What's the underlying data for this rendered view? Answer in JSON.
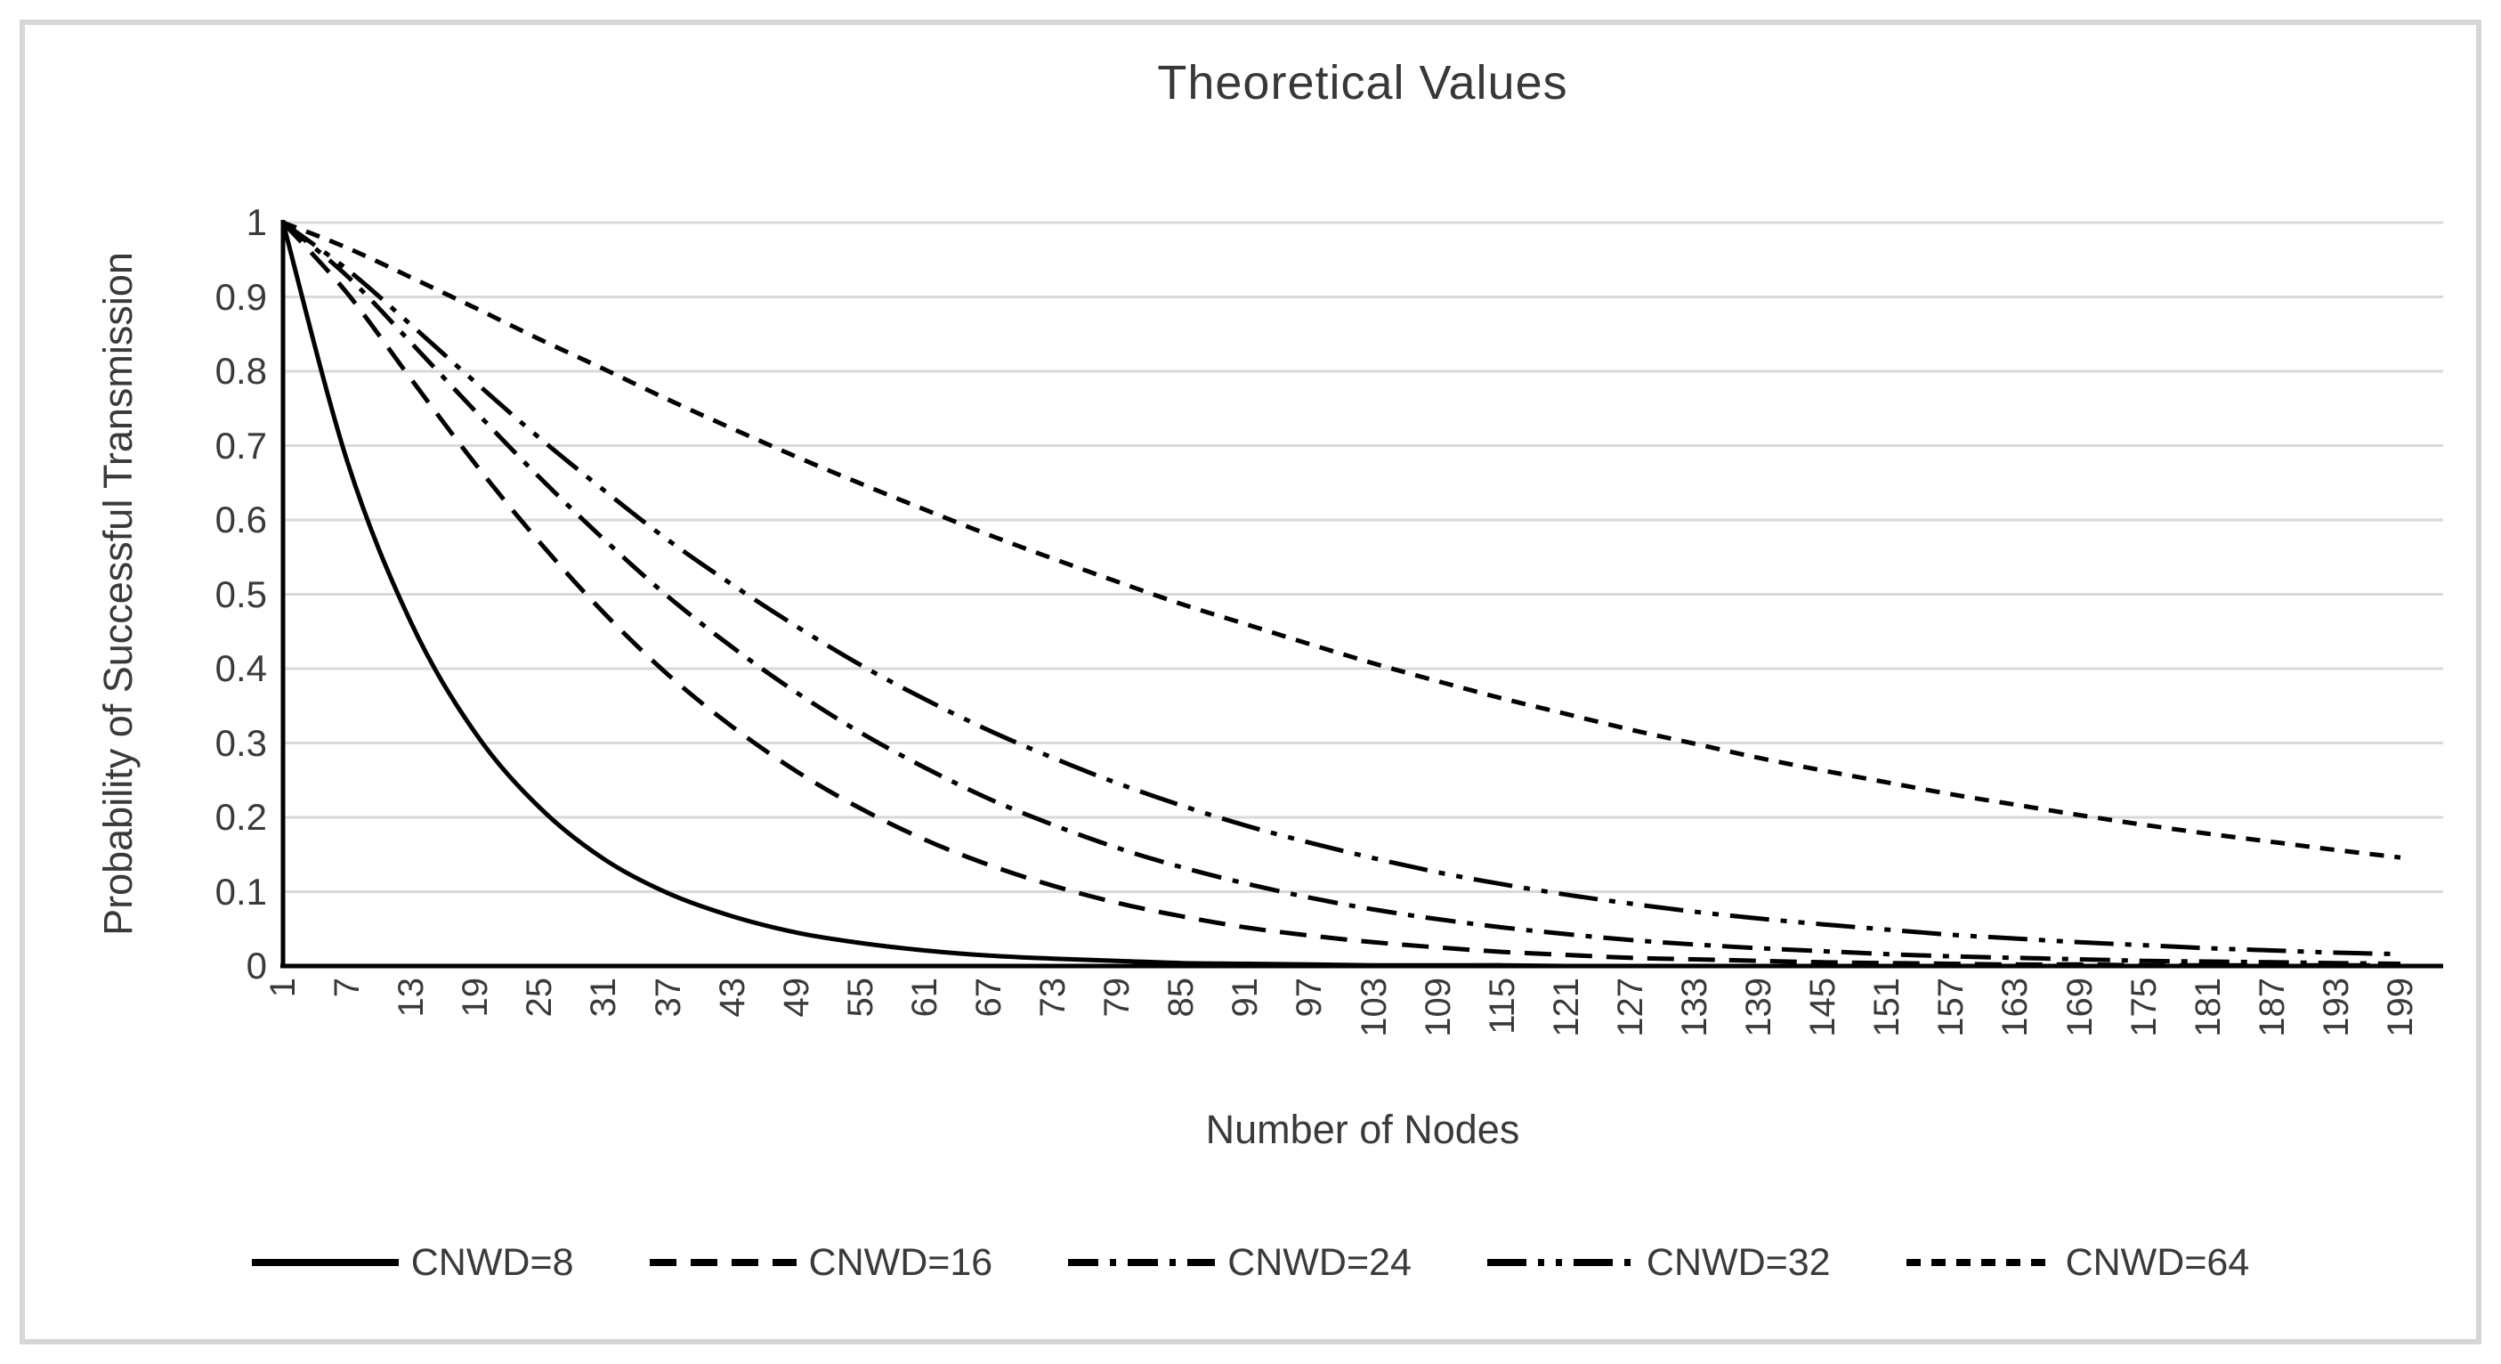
{
  "colors": {
    "series_line": "#000000",
    "gridline": "#d9d9d9",
    "axis_line": "#000000",
    "text": "#3a3a3a",
    "frame_border": "#d6d6d6",
    "background": "#ffffff"
  },
  "chart_data": {
    "type": "line",
    "title": "Theoretical Values",
    "xlabel": "Number of Nodes",
    "ylabel": "Probability of Successful Transmission",
    "x": [
      1,
      7,
      13,
      19,
      25,
      31,
      37,
      43,
      49,
      55,
      61,
      67,
      73,
      79,
      85,
      91,
      97,
      103,
      109,
      115,
      121,
      127,
      133,
      139,
      145,
      151,
      157,
      163,
      169,
      175,
      181,
      187,
      193,
      199
    ],
    "y_ticks": [
      "1",
      "0.9",
      "0.8",
      "0.7",
      "0.6",
      "0.5",
      "0.4",
      "0.3",
      "0.2",
      "0.1",
      "0"
    ],
    "ylim": [
      0,
      1
    ],
    "grid": "horizontal",
    "legend_position": "bottom",
    "series": [
      {
        "name": "CNWD=8",
        "dash": "solid",
        "values": [
          1,
          0.679,
          0.461,
          0.313,
          0.213,
          0.144,
          0.098,
          0.067,
          0.045,
          0.031,
          0.021,
          0.014,
          0.01,
          0.007,
          0.004,
          0.003,
          0.002,
          0.001,
          0.001,
          0.001,
          0,
          0,
          0,
          0,
          0,
          0,
          0,
          0,
          0,
          0,
          0,
          0,
          0,
          0
        ]
      },
      {
        "name": "CNWD=16",
        "dash": "dash",
        "values": [
          1,
          0.905,
          0.789,
          0.675,
          0.57,
          0.475,
          0.392,
          0.322,
          0.262,
          0.212,
          0.17,
          0.136,
          0.108,
          0.085,
          0.067,
          0.052,
          0.041,
          0.032,
          0.025,
          0.019,
          0.015,
          0.011,
          0.009,
          0.007,
          0.005,
          0.004,
          0.003,
          0.002,
          0.002,
          0.001,
          0.001,
          0.001,
          0.001,
          0.001
        ]
      },
      {
        "name": "CNWD=24",
        "dash": "dash-dot",
        "values": [
          1,
          0.928,
          0.838,
          0.746,
          0.657,
          0.574,
          0.497,
          0.429,
          0.368,
          0.314,
          0.267,
          0.225,
          0.19,
          0.159,
          0.133,
          0.111,
          0.092,
          0.076,
          0.063,
          0.052,
          0.043,
          0.035,
          0.029,
          0.024,
          0.02,
          0.016,
          0.013,
          0.011,
          0.009,
          0.007,
          0.006,
          0.005,
          0.004,
          0.003
        ]
      },
      {
        "name": "CNWD=32",
        "dash": "dash-dot-dot",
        "values": [
          1,
          0.937,
          0.862,
          0.785,
          0.71,
          0.64,
          0.573,
          0.513,
          0.457,
          0.405,
          0.359,
          0.317,
          0.28,
          0.246,
          0.216,
          0.189,
          0.166,
          0.145,
          0.126,
          0.11,
          0.096,
          0.084,
          0.073,
          0.064,
          0.056,
          0.049,
          0.042,
          0.037,
          0.032,
          0.028,
          0.024,
          0.021,
          0.018,
          0.016
        ]
      },
      {
        "name": "CNWD=64",
        "dash": "short-dash",
        "values": [
          1,
          0.966,
          0.926,
          0.885,
          0.843,
          0.803,
          0.762,
          0.723,
          0.685,
          0.649,
          0.614,
          0.58,
          0.548,
          0.517,
          0.487,
          0.46,
          0.433,
          0.407,
          0.383,
          0.36,
          0.339,
          0.318,
          0.299,
          0.28,
          0.263,
          0.247,
          0.231,
          0.217,
          0.203,
          0.19,
          0.178,
          0.167,
          0.156,
          0.146
        ]
      }
    ]
  }
}
